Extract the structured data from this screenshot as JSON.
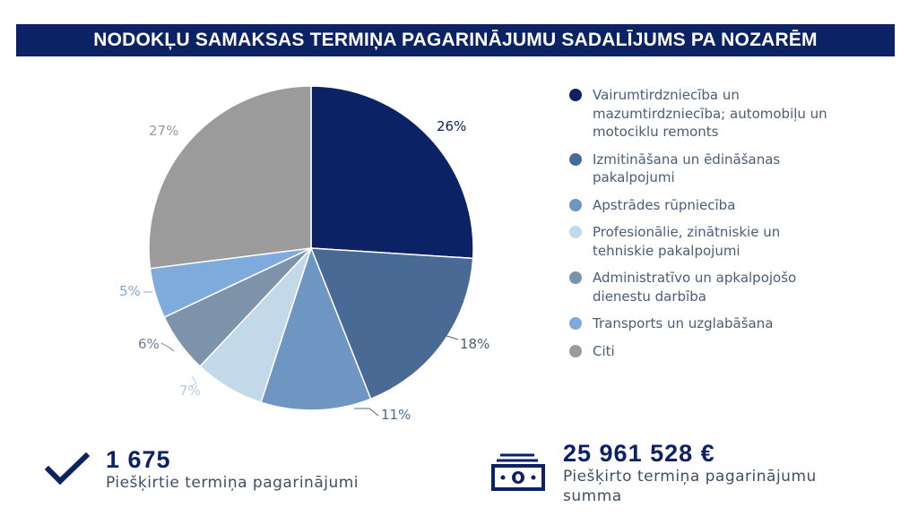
{
  "chart_data": {
    "type": "pie",
    "title": "NODOKĻU SAMAKSAS TERMIŅA PAGARINĀJUMU SADALĪJUMS PA NOZARĒM",
    "slices": [
      {
        "label": "Vairumtirdzniecība un mazumtirdzniecība; automobiļu un motociklu remonts",
        "value": 26,
        "value_label": "26%",
        "color": "#0b2265"
      },
      {
        "label": "Izmitināšana un ēdināšanas pakalpojumi",
        "value": 18,
        "value_label": "18%",
        "color": "#4a6a96"
      },
      {
        "label": "Apstrādes rūpniecība",
        "value": 11,
        "value_label": "11%",
        "color": "#6f96c2"
      },
      {
        "label": "Profesionālie, zinātniskie un tehniskie pakalpojumi",
        "value": 7,
        "value_label": "7%",
        "color": "#c3d8e8"
      },
      {
        "label": "Administratīvo un apkalpojošo dienestu darbība",
        "value": 6,
        "value_label": "6%",
        "color": "#7d93aa"
      },
      {
        "label": "Transports un uzglabāšana",
        "value": 5,
        "value_label": "5%",
        "color": "#7eabdc"
      },
      {
        "label": "Citi",
        "value": 27,
        "value_label": "27%",
        "color": "#9b9b9b"
      }
    ],
    "legend_position": "right",
    "label_colors": [
      "#0b2265",
      "#4a5d78",
      "#4a6a96",
      "#b5cde0",
      "#6b7f96",
      "#7eabdc",
      "#9b9b9b"
    ]
  },
  "stats": {
    "granted_count": "1 675",
    "granted_count_caption": "Piešķirtie termiņa pagarinājumi",
    "granted_sum": "25 961 528 €",
    "granted_sum_caption": "Piešķirto termiņa pagarinājumu summa"
  },
  "icons": {
    "left": "checkmark-icon",
    "right": "banknote-icon"
  },
  "colors": {
    "brand": "#0b2265"
  }
}
